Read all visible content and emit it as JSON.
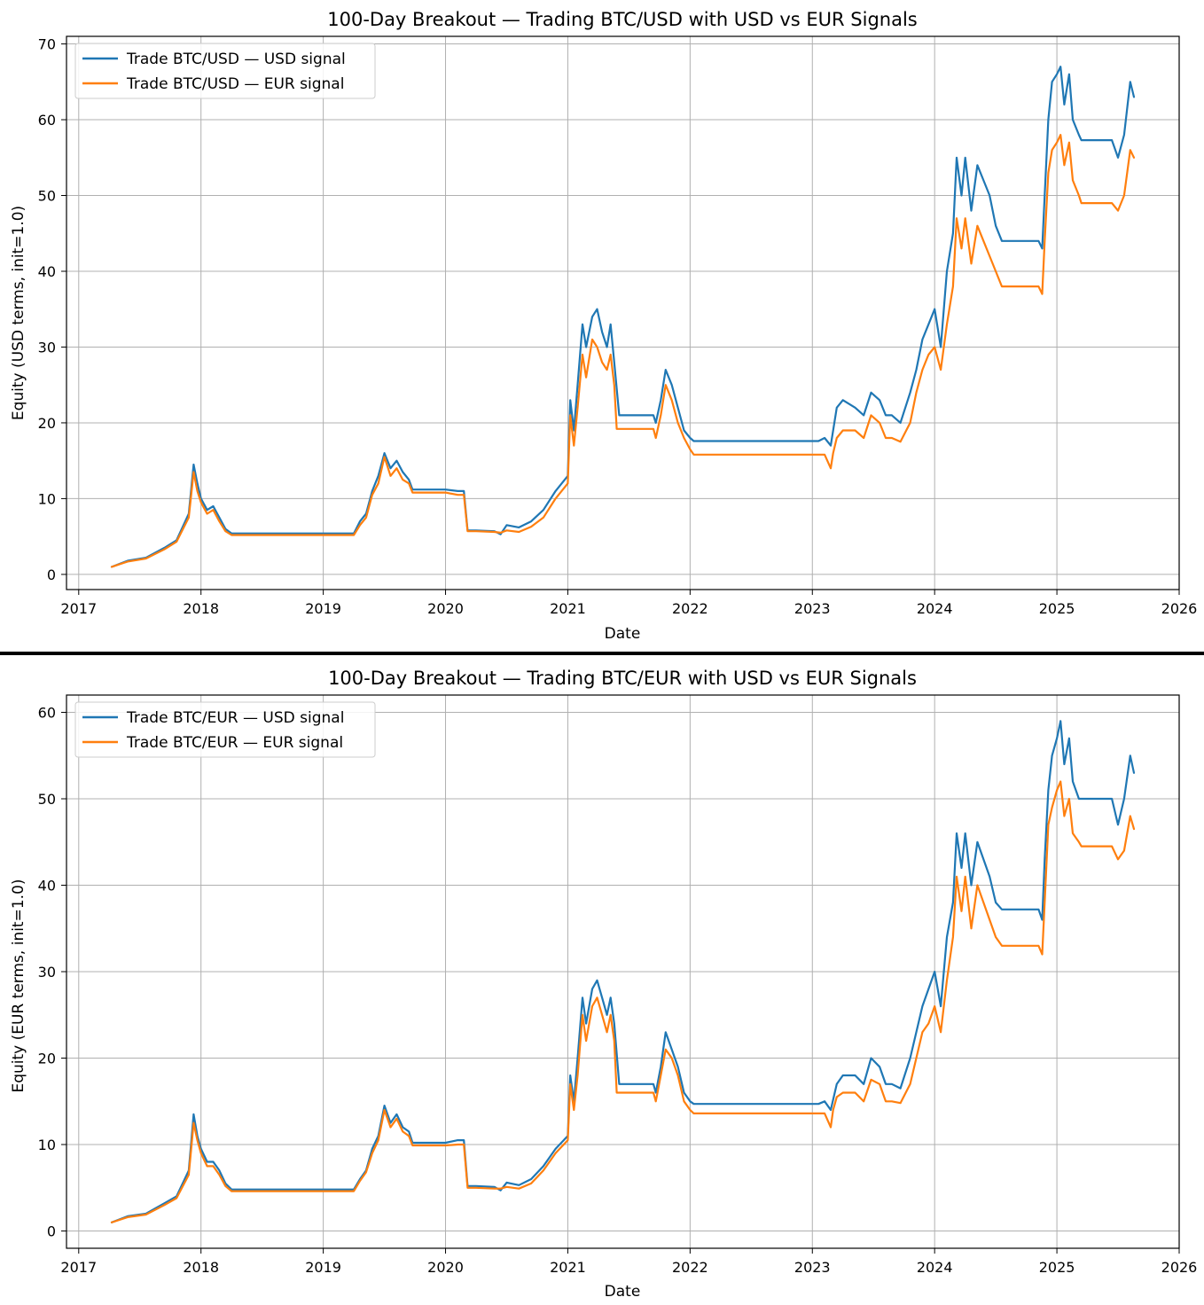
{
  "chart_data": [
    {
      "type": "line",
      "title": "100-Day Breakout — Trading BTC/USD with USD vs EUR Signals",
      "xlabel": "Date",
      "ylabel": "Equity (USD terms, init=1.0)",
      "xlim": [
        2016.9,
        2026.0
      ],
      "ylim": [
        -2,
        71
      ],
      "xticks": [
        2017,
        2018,
        2019,
        2020,
        2021,
        2022,
        2023,
        2024,
        2025,
        2026
      ],
      "yticks": [
        0,
        10,
        20,
        30,
        40,
        50,
        60,
        70
      ],
      "grid": true,
      "legend": "top-left",
      "series": [
        {
          "name": "Trade BTC/USD — USD signal",
          "color": "#1f77b4",
          "x": [
            2017.27,
            2017.4,
            2017.55,
            2017.7,
            2017.8,
            2017.9,
            2017.94,
            2017.97,
            2018.0,
            2018.05,
            2018.1,
            2018.15,
            2018.2,
            2018.25,
            2018.3,
            2019.25,
            2019.3,
            2019.35,
            2019.4,
            2019.45,
            2019.5,
            2019.55,
            2019.6,
            2019.65,
            2019.7,
            2019.73,
            2020.0,
            2020.1,
            2020.15,
            2020.18,
            2020.25,
            2020.4,
            2020.45,
            2020.5,
            2020.6,
            2020.7,
            2020.8,
            2020.9,
            2021.0,
            2021.02,
            2021.05,
            2021.08,
            2021.12,
            2021.15,
            2021.2,
            2021.24,
            2021.28,
            2021.32,
            2021.35,
            2021.38,
            2021.42,
            2021.7,
            2021.72,
            2021.76,
            2021.8,
            2021.85,
            2021.9,
            2021.95,
            2022.0,
            2022.03,
            2023.05,
            2023.1,
            2023.15,
            2023.2,
            2023.25,
            2023.35,
            2023.42,
            2023.48,
            2023.55,
            2023.6,
            2023.65,
            2023.72,
            2023.8,
            2023.85,
            2023.9,
            2023.95,
            2024.0,
            2024.05,
            2024.1,
            2024.15,
            2024.18,
            2024.22,
            2024.25,
            2024.3,
            2024.35,
            2024.4,
            2024.45,
            2024.5,
            2024.55,
            2024.6,
            2024.82,
            2024.85,
            2024.88,
            2024.9,
            2024.93,
            2024.96,
            2025.0,
            2025.03,
            2025.06,
            2025.1,
            2025.13,
            2025.18,
            2025.2,
            2025.4,
            2025.45,
            2025.5,
            2025.55,
            2025.6,
            2025.63
          ],
          "values": [
            1,
            1.8,
            2.2,
            3.5,
            4.5,
            8,
            14.5,
            12,
            10,
            8.5,
            9,
            7.5,
            6,
            5.4,
            5.4,
            5.4,
            7,
            8,
            11,
            13,
            16,
            14,
            15,
            13.5,
            12.5,
            11.2,
            11.2,
            11,
            11,
            5.8,
            5.8,
            5.7,
            5.3,
            6.5,
            6.2,
            7,
            8.5,
            11,
            13,
            23,
            19,
            25,
            33,
            30,
            34,
            35,
            32,
            30,
            33,
            28,
            21,
            21,
            20,
            23,
            27,
            25,
            22,
            19,
            18,
            17.6,
            17.6,
            18,
            17,
            22,
            23,
            22,
            21,
            24,
            23,
            21,
            21,
            20,
            24,
            27,
            31,
            33,
            35,
            30,
            40,
            45,
            55,
            50,
            55,
            48,
            54,
            52,
            50,
            46,
            44,
            44,
            44,
            44,
            43,
            50,
            60,
            65,
            66,
            67,
            62,
            66,
            60,
            58,
            57.3,
            57.3,
            57.3,
            55,
            58,
            65,
            63
          ]
        },
        {
          "name": "Trade BTC/USD — EUR signal",
          "color": "#ff7f0e",
          "x": [
            2017.27,
            2017.4,
            2017.55,
            2017.7,
            2017.8,
            2017.9,
            2017.94,
            2017.97,
            2018.0,
            2018.05,
            2018.1,
            2018.15,
            2018.2,
            2018.25,
            2018.3,
            2019.25,
            2019.3,
            2019.35,
            2019.4,
            2019.45,
            2019.5,
            2019.55,
            2019.6,
            2019.65,
            2019.7,
            2019.73,
            2020.0,
            2020.1,
            2020.15,
            2020.18,
            2020.25,
            2020.4,
            2020.45,
            2020.5,
            2020.6,
            2020.7,
            2020.8,
            2020.9,
            2021.0,
            2021.02,
            2021.05,
            2021.08,
            2021.12,
            2021.15,
            2021.2,
            2021.24,
            2021.28,
            2021.32,
            2021.35,
            2021.38,
            2021.4,
            2021.7,
            2021.72,
            2021.76,
            2021.8,
            2021.85,
            2021.9,
            2021.95,
            2022.0,
            2022.03,
            2023.1,
            2023.15,
            2023.17,
            2023.2,
            2023.25,
            2023.35,
            2023.42,
            2023.48,
            2023.55,
            2023.6,
            2023.65,
            2023.72,
            2023.8,
            2023.85,
            2023.9,
            2023.95,
            2024.0,
            2024.05,
            2024.1,
            2024.15,
            2024.18,
            2024.22,
            2024.25,
            2024.3,
            2024.35,
            2024.4,
            2024.45,
            2024.5,
            2024.55,
            2024.6,
            2024.82,
            2024.85,
            2024.88,
            2024.9,
            2024.93,
            2024.96,
            2025.0,
            2025.03,
            2025.06,
            2025.1,
            2025.13,
            2025.18,
            2025.2,
            2025.4,
            2025.45,
            2025.5,
            2025.55,
            2025.6,
            2025.63
          ],
          "values": [
            1,
            1.7,
            2.1,
            3.3,
            4.3,
            7.5,
            13.5,
            11,
            9.5,
            8,
            8.5,
            7,
            5.7,
            5.2,
            5.2,
            5.2,
            6.5,
            7.5,
            10.5,
            12,
            15.5,
            13,
            14,
            12.5,
            12,
            10.8,
            10.8,
            10.5,
            10.5,
            5.7,
            5.7,
            5.6,
            5.5,
            5.8,
            5.6,
            6.3,
            7.5,
            10,
            12,
            21,
            17,
            22,
            29,
            26,
            31,
            30,
            28,
            27,
            29,
            25,
            19.2,
            19.2,
            18,
            21,
            25,
            23,
            20,
            18,
            16.5,
            15.8,
            15.8,
            14,
            16,
            18,
            19,
            19,
            18,
            21,
            20,
            18,
            18,
            17.5,
            20,
            24,
            27,
            29,
            30,
            27,
            33,
            38,
            47,
            43,
            47,
            41,
            46,
            44,
            42,
            40,
            38,
            38,
            38,
            38,
            37,
            44,
            53,
            56,
            57,
            58,
            54,
            57,
            52,
            50,
            49,
            49,
            49,
            48,
            50,
            56,
            55
          ]
        }
      ]
    },
    {
      "type": "line",
      "title": "100-Day Breakout — Trading BTC/EUR with USD vs EUR Signals",
      "xlabel": "Date",
      "ylabel": "Equity (EUR terms, init=1.0)",
      "xlim": [
        2016.9,
        2026.0
      ],
      "ylim": [
        -2,
        62
      ],
      "xticks": [
        2017,
        2018,
        2019,
        2020,
        2021,
        2022,
        2023,
        2024,
        2025,
        2026
      ],
      "yticks": [
        0,
        10,
        20,
        30,
        40,
        50,
        60
      ],
      "grid": true,
      "legend": "top-left",
      "series": [
        {
          "name": "Trade BTC/EUR — USD signal",
          "color": "#1f77b4",
          "x": [
            2017.27,
            2017.4,
            2017.55,
            2017.7,
            2017.8,
            2017.9,
            2017.94,
            2017.97,
            2018.0,
            2018.05,
            2018.1,
            2018.15,
            2018.2,
            2018.25,
            2018.3,
            2019.25,
            2019.3,
            2019.35,
            2019.4,
            2019.45,
            2019.5,
            2019.55,
            2019.6,
            2019.65,
            2019.7,
            2019.73,
            2020.0,
            2020.1,
            2020.15,
            2020.18,
            2020.25,
            2020.4,
            2020.45,
            2020.5,
            2020.6,
            2020.7,
            2020.8,
            2020.9,
            2021.0,
            2021.02,
            2021.05,
            2021.08,
            2021.12,
            2021.15,
            2021.2,
            2021.24,
            2021.28,
            2021.32,
            2021.35,
            2021.38,
            2021.42,
            2021.7,
            2021.72,
            2021.76,
            2021.8,
            2021.85,
            2021.9,
            2021.95,
            2022.0,
            2022.03,
            2023.05,
            2023.1,
            2023.15,
            2023.2,
            2023.25,
            2023.35,
            2023.42,
            2023.48,
            2023.55,
            2023.6,
            2023.65,
            2023.72,
            2023.8,
            2023.85,
            2023.9,
            2023.95,
            2024.0,
            2024.05,
            2024.1,
            2024.15,
            2024.18,
            2024.22,
            2024.25,
            2024.3,
            2024.35,
            2024.4,
            2024.45,
            2024.5,
            2024.55,
            2024.6,
            2024.82,
            2024.85,
            2024.88,
            2024.9,
            2024.93,
            2024.96,
            2025.0,
            2025.03,
            2025.06,
            2025.1,
            2025.13,
            2025.18,
            2025.2,
            2025.4,
            2025.45,
            2025.5,
            2025.55,
            2025.6,
            2025.63
          ],
          "values": [
            1,
            1.7,
            2,
            3.2,
            4,
            7,
            13.5,
            11,
            9.5,
            8,
            8,
            7,
            5.5,
            4.8,
            4.8,
            4.8,
            6,
            7,
            9.5,
            11,
            14.5,
            12.5,
            13.5,
            12,
            11.5,
            10.2,
            10.2,
            10.5,
            10.5,
            5.2,
            5.2,
            5.1,
            4.7,
            5.6,
            5.3,
            6,
            7.5,
            9.5,
            11,
            18,
            15,
            20,
            27,
            24,
            28,
            29,
            27,
            25,
            27,
            24,
            17,
            17,
            16,
            19,
            23,
            21,
            19,
            16,
            15,
            14.7,
            14.7,
            15,
            14,
            17,
            18,
            18,
            17,
            20,
            19,
            17,
            17,
            16.5,
            20,
            23,
            26,
            28,
            30,
            26,
            34,
            38,
            46,
            42,
            46,
            40,
            45,
            43,
            41,
            38,
            37.2,
            37.2,
            37.2,
            37.2,
            36,
            43,
            51,
            55,
            57,
            59,
            54,
            57,
            52,
            50,
            50,
            50,
            50,
            47,
            50,
            55,
            53
          ]
        },
        {
          "name": "Trade BTC/EUR — EUR signal",
          "color": "#ff7f0e",
          "x": [
            2017.27,
            2017.4,
            2017.55,
            2017.7,
            2017.8,
            2017.9,
            2017.94,
            2017.97,
            2018.0,
            2018.05,
            2018.1,
            2018.15,
            2018.2,
            2018.25,
            2018.3,
            2019.25,
            2019.3,
            2019.35,
            2019.4,
            2019.45,
            2019.5,
            2019.55,
            2019.6,
            2019.65,
            2019.7,
            2019.73,
            2020.0,
            2020.1,
            2020.15,
            2020.18,
            2020.25,
            2020.4,
            2020.45,
            2020.5,
            2020.6,
            2020.7,
            2020.8,
            2020.9,
            2021.0,
            2021.02,
            2021.05,
            2021.08,
            2021.12,
            2021.15,
            2021.2,
            2021.24,
            2021.28,
            2021.32,
            2021.35,
            2021.38,
            2021.4,
            2021.7,
            2021.72,
            2021.76,
            2021.8,
            2021.85,
            2021.9,
            2021.95,
            2022.0,
            2022.03,
            2023.1,
            2023.15,
            2023.17,
            2023.2,
            2023.25,
            2023.35,
            2023.42,
            2023.48,
            2023.55,
            2023.6,
            2023.65,
            2023.72,
            2023.8,
            2023.85,
            2023.9,
            2023.95,
            2024.0,
            2024.05,
            2024.1,
            2024.15,
            2024.18,
            2024.22,
            2024.25,
            2024.3,
            2024.35,
            2024.4,
            2024.45,
            2024.5,
            2024.55,
            2024.6,
            2024.82,
            2024.85,
            2024.88,
            2024.9,
            2024.93,
            2024.96,
            2025.0,
            2025.03,
            2025.06,
            2025.1,
            2025.13,
            2025.18,
            2025.2,
            2025.4,
            2025.45,
            2025.5,
            2025.55,
            2025.6,
            2025.63
          ],
          "values": [
            1,
            1.6,
            1.9,
            3,
            3.8,
            6.5,
            12.5,
            10.5,
            9,
            7.5,
            7.5,
            6.5,
            5.2,
            4.6,
            4.6,
            4.6,
            5.8,
            6.8,
            9,
            10.5,
            14,
            12,
            13,
            11.5,
            11,
            9.9,
            9.9,
            10,
            10,
            5,
            5,
            4.9,
            4.9,
            5.1,
            4.9,
            5.5,
            7,
            9,
            10.5,
            17,
            14,
            18,
            25,
            22,
            26,
            27,
            25,
            23,
            25,
            22,
            16,
            16,
            15,
            18,
            21,
            20,
            18,
            15,
            14,
            13.6,
            13.6,
            12,
            14,
            15.5,
            16,
            16,
            15,
            17.5,
            17,
            15,
            15,
            14.8,
            17,
            20,
            23,
            24,
            26,
            23,
            29,
            34,
            41,
            37,
            41,
            35,
            40,
            38,
            36,
            34,
            33,
            33,
            33,
            33,
            32,
            38,
            47,
            49,
            51,
            52,
            48,
            50,
            46,
            45,
            44.5,
            44.5,
            44.5,
            43,
            44,
            48,
            46.5
          ]
        }
      ]
    }
  ]
}
